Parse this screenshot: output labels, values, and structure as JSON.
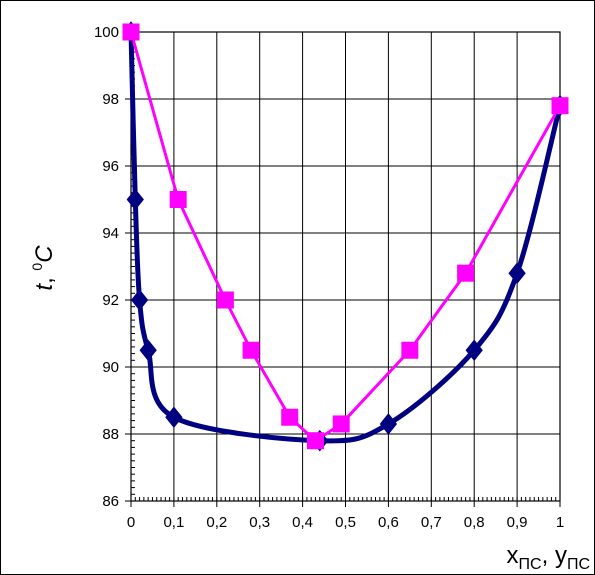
{
  "chart_data": {
    "type": "line",
    "xlabel": {
      "main": "x",
      "main_sub": "ПС",
      "sep": ", ",
      "second": "y",
      "second_sub": "ПС"
    },
    "ylabel": {
      "var": "t",
      "sep": ", ",
      "sup": "0",
      "unit": "C"
    },
    "xlim": [
      0,
      1
    ],
    "ylim": [
      86,
      100
    ],
    "x_ticks": [
      "0",
      "0,1",
      "0,2",
      "0,3",
      "0,4",
      "0,5",
      "0,6",
      "0,7",
      "0,8",
      "0,9",
      "1"
    ],
    "y_ticks": [
      "86",
      "88",
      "90",
      "92",
      "94",
      "96",
      "98",
      "100"
    ],
    "grid": true,
    "series": [
      {
        "color": "#000080",
        "marker": "diamond",
        "smooth": true,
        "points": [
          [
            0,
            100
          ],
          [
            0.01,
            95
          ],
          [
            0.02,
            92
          ],
          [
            0.04,
            90.5
          ],
          [
            0.1,
            88.5
          ],
          [
            0.44,
            87.8
          ],
          [
            0.6,
            88.3
          ],
          [
            0.8,
            90.5
          ],
          [
            0.9,
            92.8
          ],
          [
            1,
            97.8
          ]
        ]
      },
      {
        "color": "#FF00FF",
        "marker": "square",
        "smooth": false,
        "points": [
          [
            0,
            100
          ],
          [
            0.11,
            95
          ],
          [
            0.22,
            92
          ],
          [
            0.28,
            90.5
          ],
          [
            0.37,
            88.5
          ],
          [
            0.43,
            87.8
          ],
          [
            0.49,
            88.3
          ],
          [
            0.65,
            90.5
          ],
          [
            0.78,
            92.8
          ],
          [
            1,
            97.8
          ]
        ]
      }
    ]
  }
}
